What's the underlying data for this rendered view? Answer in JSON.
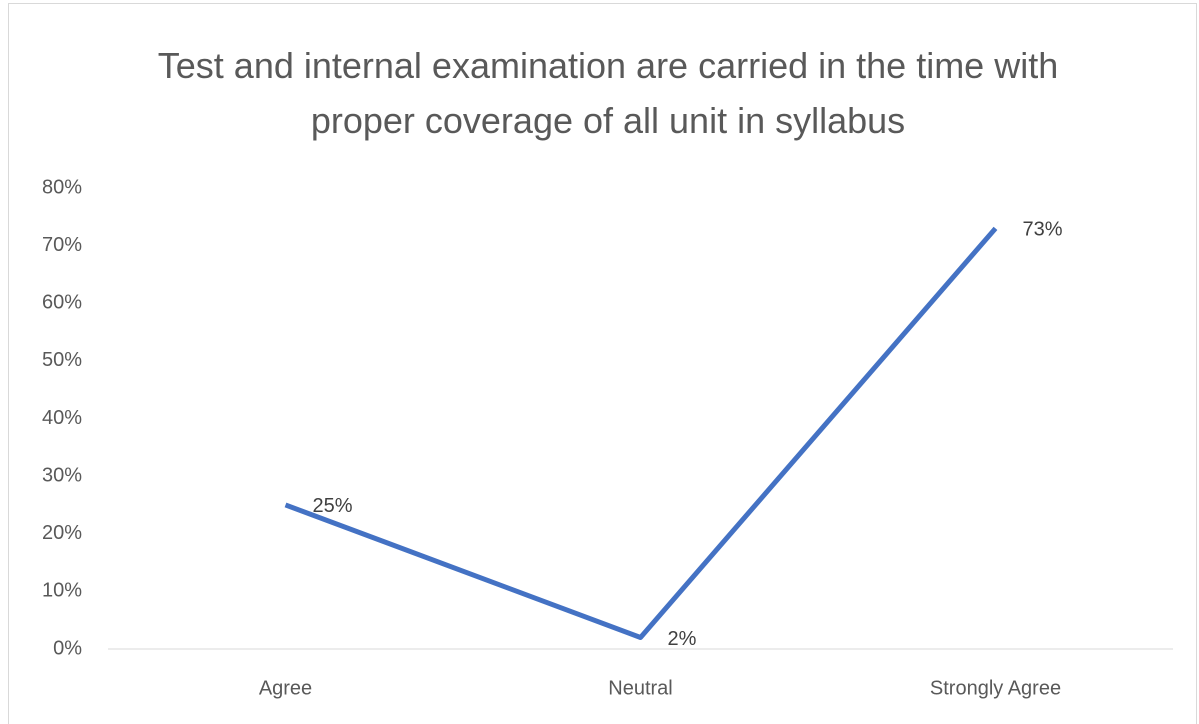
{
  "chart_data": {
    "type": "line",
    "title": "Test and internal examination are carried in the time with proper coverage of all unit in syllabus",
    "categories": [
      "Agree",
      "Neutral",
      "Strongly Agree"
    ],
    "series": [
      {
        "name": "Series1",
        "color": "#4472c4",
        "values": [
          25,
          2,
          73
        ],
        "value_labels": [
          "25%",
          "2%",
          "73%"
        ]
      }
    ],
    "ylim": [
      0,
      80
    ],
    "yticks": [
      {
        "value": 0,
        "label": "0%"
      },
      {
        "value": 10,
        "label": "10%"
      },
      {
        "value": 20,
        "label": "20%"
      },
      {
        "value": 30,
        "label": "30%"
      },
      {
        "value": 40,
        "label": "40%"
      },
      {
        "value": 50,
        "label": "50%"
      },
      {
        "value": 60,
        "label": "60%"
      },
      {
        "value": 70,
        "label": "70%"
      },
      {
        "value": 80,
        "label": "80%"
      }
    ],
    "grid": false
  }
}
